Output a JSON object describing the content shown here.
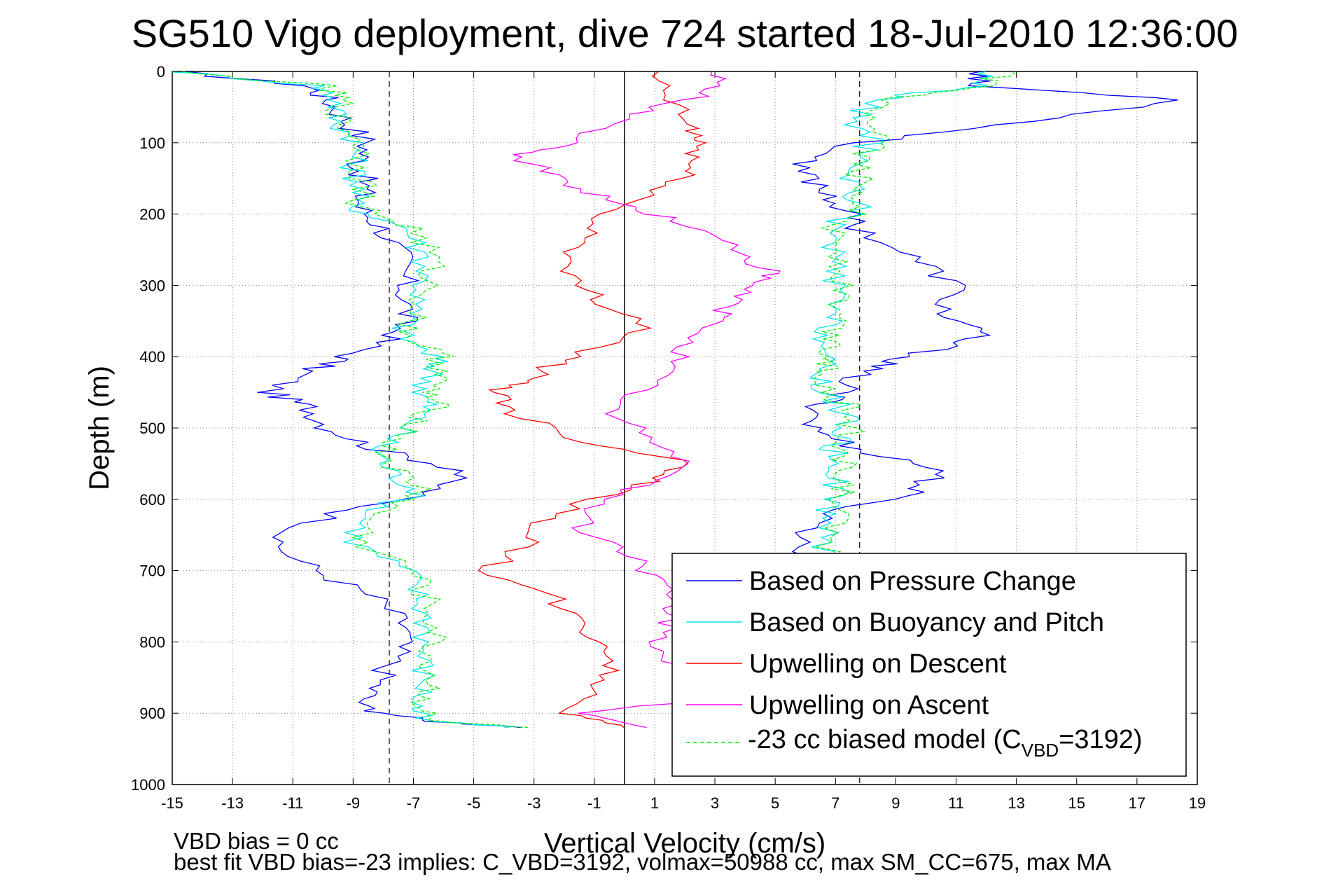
{
  "chart_data": {
    "type": "line",
    "title": "SG510 Vigo deployment, dive 724 started 18-Jul-2010 12:36:00",
    "xlabel": "Vertical Velocity (cm/s)",
    "ylabel": "Depth (m)",
    "xlim": [
      -15,
      19
    ],
    "ylim": [
      0,
      1000
    ],
    "y_reversed": true,
    "grid": true,
    "x_ticks": [
      "-15",
      "-13",
      "-11",
      "-9",
      "-7",
      "-5",
      "-3",
      "-1",
      "1",
      "3",
      "5",
      "7",
      "9",
      "11",
      "13",
      "15",
      "17",
      "19"
    ],
    "y_ticks": [
      "0",
      "100",
      "200",
      "300",
      "400",
      "500",
      "600",
      "700",
      "800",
      "900",
      "1000"
    ],
    "legend_position": "bottom-right",
    "reference_lines": {
      "solid_x": 0,
      "dashed_x": [
        -7.8,
        7.8
      ]
    },
    "series": [
      {
        "name": "Based on Pressure Change",
        "color": "#0000ff",
        "style": "solid",
        "depth": [
          0,
          20,
          40,
          70,
          100,
          130,
          160,
          190,
          220,
          260,
          300,
          340,
          370,
          400,
          420,
          450,
          470,
          500,
          530,
          560,
          590,
          620,
          660,
          700,
          740,
          780,
          820,
          860,
          890,
          910,
          920
        ],
        "descent": [
          -15,
          -10.5,
          -9.8,
          -9.2,
          -8.5,
          -8.8,
          -8.6,
          -8.8,
          -8,
          -7.4,
          -7.3,
          -7.2,
          -7.6,
          -9.2,
          -10.5,
          -11.8,
          -10.5,
          -9.8,
          -8.2,
          -5.3,
          -6.5,
          -9.5,
          -11.8,
          -10.2,
          -8.2,
          -7.2,
          -7.6,
          -8.2,
          -8.8,
          -6.8,
          -3.2
        ],
        "ascent": [
          12,
          11.5,
          18.8,
          13.5,
          7.8,
          5.5,
          6.5,
          7.2,
          7.8,
          9.5,
          11,
          10.5,
          11.8,
          9.5,
          7.8,
          7.2,
          6.5,
          6.2,
          7.8,
          10.6,
          9.5,
          6.8,
          5.8,
          6.2
        ]
      },
      {
        "name": "Based on Buoyancy and Pitch",
        "color": "#00e5ee",
        "style": "solid",
        "depth": [
          0,
          20,
          40,
          70,
          100,
          130,
          160,
          190,
          220,
          260,
          300,
          340,
          370,
          400,
          420,
          450,
          470,
          500,
          530,
          560,
          590,
          620,
          660,
          700,
          740,
          780,
          820,
          860,
          890,
          910,
          920
        ],
        "descent": [
          -15,
          -10.2,
          -9.5,
          -9.6,
          -8.8,
          -9,
          -8.8,
          -9,
          -7.2,
          -6.6,
          -6.7,
          -7.1,
          -7.4,
          -6.3,
          -6.3,
          -6.7,
          -6.5,
          -7.2,
          -8.2,
          -7.8,
          -6.8,
          -8.5,
          -9,
          -7.2,
          -6.8,
          -6.5,
          -6.7,
          -6.6,
          -6.9,
          -6.8,
          -3.6
        ],
        "ascent": [
          12,
          11.8,
          8.2,
          7.6,
          8.2,
          7.5,
          7.6,
          7.8,
          6.8,
          6.9,
          7,
          6.8,
          6.7,
          6.6,
          6.5,
          6.6,
          7.2,
          7.4,
          6.9,
          7.1,
          7,
          6.8,
          6.6,
          6.8
        ]
      },
      {
        "name": "Upwelling on Descent",
        "color": "#ff0000",
        "style": "solid",
        "depth": [
          0,
          40,
          80,
          100,
          130,
          160,
          200,
          240,
          280,
          320,
          360,
          400,
          430,
          450,
          480,
          520,
          550,
          580,
          620,
          660,
          700,
          740,
          780,
          820,
          860,
          900,
          920
        ],
        "values": [
          0.8,
          1.5,
          2.2,
          2.5,
          2.2,
          1.6,
          -0.8,
          -1.3,
          -2.2,
          -0.8,
          0.9,
          -1.8,
          -3.2,
          -4.2,
          -3.6,
          -1.2,
          2.4,
          0.5,
          -2.4,
          -3.2,
          -4.6,
          -2.4,
          -1.4,
          -0.3,
          -0.9,
          -1.8,
          0.4
        ]
      },
      {
        "name": "Upwelling on Ascent",
        "color": "#ff00ff",
        "style": "solid",
        "depth": [
          0,
          30,
          60,
          100,
          120,
          150,
          180,
          210,
          250,
          280,
          300,
          330,
          360,
          400,
          440,
          480,
          520,
          560,
          600,
          640,
          680,
          720,
          760,
          800,
          840,
          880,
          900,
          920
        ],
        "values": [
          3,
          2.8,
          0.4,
          -2,
          -3.6,
          -2.2,
          -0.6,
          1.8,
          3.8,
          4.8,
          4.2,
          3.4,
          2.8,
          1.8,
          0.8,
          -0.6,
          1.2,
          2.2,
          -0.8,
          -1.5,
          0.4,
          1.2,
          1.6,
          1.1,
          1.8,
          2.6,
          -1.2,
          0.6
        ]
      },
      {
        "name": "-23 cc biased model (C_VBD=3192)",
        "legend_text": "-23 cc biased model (C",
        "legend_sub": "VBD",
        "legend_suffix": "=3192)",
        "color": "#00ee00",
        "style": "dashed",
        "depth": [
          0,
          20,
          40,
          70,
          100,
          130,
          160,
          190,
          220,
          260,
          300,
          340,
          370,
          400,
          420,
          450,
          470,
          500,
          530,
          560,
          590,
          620,
          660,
          700,
          740,
          780,
          820,
          860,
          890,
          910,
          920
        ],
        "descent": [
          -15,
          -10,
          -9.4,
          -9.5,
          -8.7,
          -8.8,
          -8.6,
          -8.8,
          -7,
          -6.4,
          -6.5,
          -6.9,
          -7.2,
          -6.1,
          -6.1,
          -6.5,
          -6.3,
          -7,
          -8,
          -7.6,
          -6.6,
          -8.3,
          -8.8,
          -7,
          -6.6,
          -6.3,
          -6.5,
          -6.4,
          -6.7,
          -6.6,
          -3.4
        ],
        "ascent": [
          12.5,
          12,
          8.4,
          7.8,
          8.4,
          7.7,
          7.8,
          8,
          7,
          7.1,
          7.2,
          7,
          6.9,
          6.8,
          6.7,
          6.8,
          7.4,
          7.6,
          7.1,
          7.3,
          7.2,
          7,
          6.8,
          7
        ]
      }
    ],
    "annotations": [
      "VBD bias = 0 cc",
      "best fit VBD bias=-23 implies: C_VBD=3192, volmax=50988 cc, max SM_CC=675, max MA"
    ]
  }
}
